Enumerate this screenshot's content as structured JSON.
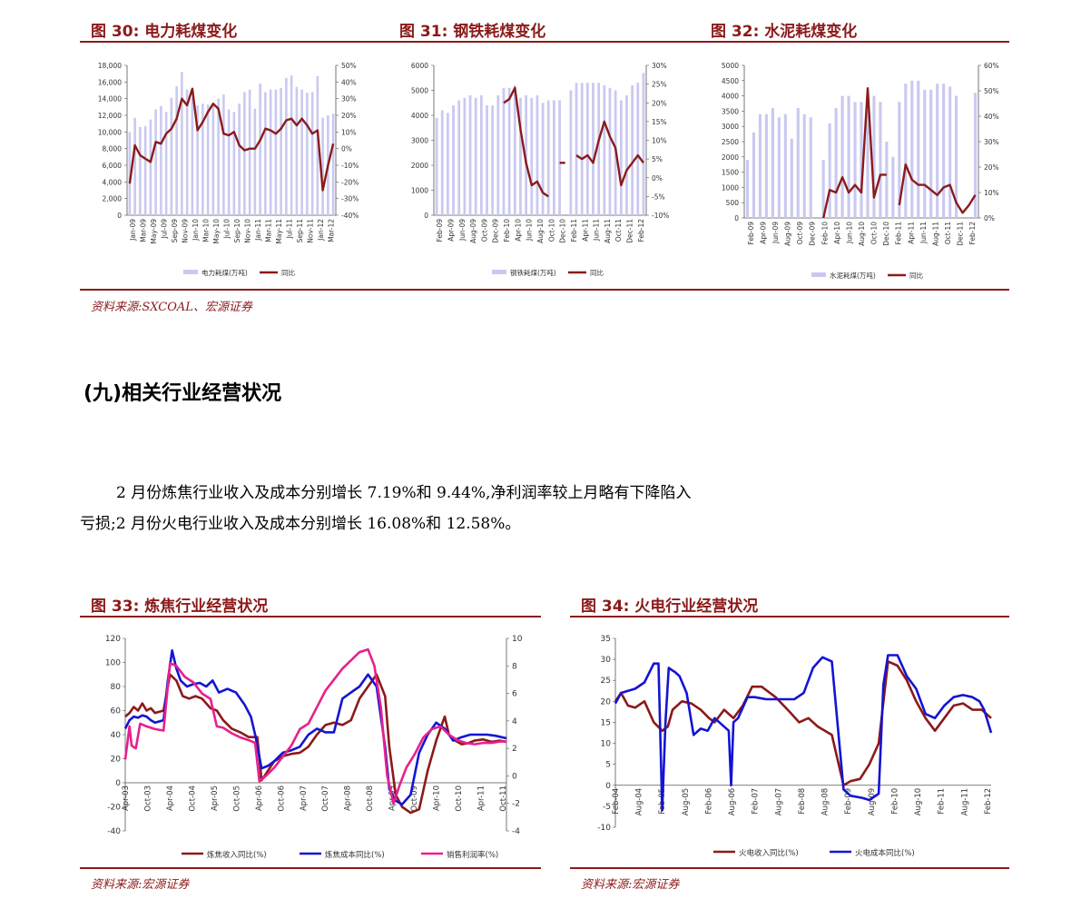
{
  "top_figures": [
    {
      "title": "图 30:  电力耗煤变化"
    },
    {
      "title": "图 31:  钢铁耗煤变化"
    },
    {
      "title": "图 32:  水泥耗煤变化"
    }
  ],
  "top_source": "资料来源:SXCOAL、宏源证券",
  "section_title": "(九)相关行业经营状况",
  "paragraph": {
    "line1": "2 月份炼焦行业收入及成本分别增长 7.19%和 9.44%,净利润率较上月略有下降陷入",
    "line2": "亏损;2 月份火电行业收入及成本分别增长 16.08%和 12.58%。"
  },
  "bottom_figures": [
    {
      "title": "图 33:  炼焦行业经营状况"
    },
    {
      "title": "图 34:  火电行业经营状况"
    }
  ],
  "bottom_sources": [
    "资料来源:宏源证券",
    "资料来源:宏源证券"
  ],
  "colors": {
    "accent": "#8b1a1a",
    "bar": "#c9c9f0",
    "line_dark": "#8b1a1a",
    "line_blue": "#1414d2",
    "line_pink": "#e8208c"
  },
  "chart_data": [
    {
      "type": "bar",
      "legend": [
        "电力耗煤(万吨)",
        "同比"
      ],
      "left_ticks": [
        "18,000",
        "16,000",
        "14,000",
        "12,000",
        "10,000",
        "8,000",
        "6,000",
        "4,000",
        "2,000",
        "0"
      ],
      "right_ticks": [
        "50%",
        "40%",
        "30%",
        "20%",
        "10%",
        "0%",
        "-10%",
        "-20%",
        "-30%",
        "-40%"
      ],
      "ylim": [
        0,
        18000
      ],
      "y2lim": [
        -40,
        50
      ],
      "x_ticks": [
        "Jan-09",
        "Mar-09",
        "May-09",
        "Jul-09",
        "Sep-09",
        "Nov-09",
        "Jan-10",
        "Mar-10",
        "May-10",
        "Jul-10",
        "Sep-10",
        "Nov-10",
        "Jan-11",
        "Mar-11",
        "May-11",
        "Jul-11",
        "Sep-11",
        "Nov-11",
        "Jan-12",
        "Mar-12"
      ],
      "bars": [
        10000,
        11700,
        10600,
        10700,
        11500,
        12700,
        13100,
        12400,
        14100,
        15500,
        17200,
        15100,
        14100,
        13200,
        13400,
        13300,
        13300,
        14000,
        14500,
        12700,
        12400,
        13400,
        14800,
        15100,
        12800,
        15800,
        14800,
        15100,
        15100,
        15300,
        16500,
        16800,
        15400,
        15100,
        14700,
        14800,
        16700,
        11700,
        12000,
        12200
      ],
      "line": [
        -21,
        2,
        -4,
        -6,
        -8,
        4,
        3,
        9,
        12,
        18,
        30,
        26,
        36,
        11,
        16,
        22,
        27,
        24,
        9,
        8,
        10,
        2,
        -1,
        0,
        0,
        5,
        12,
        11,
        9,
        12,
        17,
        18,
        14,
        18,
        14,
        9,
        11,
        -25,
        -10,
        3
      ],
      "series_names": [
        "电力耗煤(万吨)",
        "同比"
      ]
    },
    {
      "type": "bar",
      "legend": [
        "钢铁耗煤(万吨)",
        "同比"
      ],
      "left_ticks": [
        "6000",
        "5000",
        "4000",
        "3000",
        "2000",
        "1000",
        "0"
      ],
      "right_ticks": [
        "30%",
        "25%",
        "20%",
        "15%",
        "10%",
        "5%",
        "0%",
        "-5%",
        "-10%"
      ],
      "ylim": [
        0,
        6000
      ],
      "y2lim": [
        -10,
        30
      ],
      "x_ticks": [
        "Feb-09",
        "Apr-09",
        "Jun-09",
        "Aug-09",
        "Oct-09",
        "Dec-09",
        "Feb-10",
        "Apr-10",
        "Jun-10",
        "Aug-10",
        "Oct-10",
        "Dec-10",
        "Feb-11",
        "Apr-11",
        "Jun-11",
        "Aug-11",
        "Oct-11",
        "Dec-11",
        "Feb-12"
      ],
      "bars": [
        3900,
        4200,
        4100,
        4400,
        4600,
        4700,
        4800,
        4700,
        4800,
        4400,
        4400,
        4800,
        5100,
        5100,
        5200,
        4700,
        4800,
        4700,
        4800,
        4500,
        4600,
        4600,
        4600,
        null,
        5000,
        5300,
        5300,
        5300,
        5300,
        5300,
        5200,
        5100,
        5000,
        4600,
        4800,
        5200,
        5300,
        5700
      ],
      "line": [
        null,
        null,
        null,
        null,
        null,
        null,
        null,
        null,
        null,
        null,
        null,
        null,
        20,
        21,
        24,
        13,
        4,
        -2,
        -1,
        -4,
        -5,
        null,
        4,
        4,
        null,
        6,
        5,
        6,
        4,
        10,
        15,
        11,
        8,
        -2,
        2,
        4,
        6,
        4
      ],
      "series_names": [
        "钢铁耗煤(万吨)",
        "同比"
      ]
    },
    {
      "type": "bar",
      "legend": [
        "水泥耗煤(万吨)",
        "同比"
      ],
      "left_ticks": [
        "5000",
        "4500",
        "4000",
        "3500",
        "3000",
        "2500",
        "2000",
        "1500",
        "1000",
        "500",
        "0"
      ],
      "right_ticks": [
        "60%",
        "50%",
        "40%",
        "30%",
        "20%",
        "10%",
        "0%"
      ],
      "ylim": [
        0,
        5000
      ],
      "y2lim": [
        0,
        60
      ],
      "x_ticks": [
        "Feb-09",
        "Apr-09",
        "Jun-09",
        "Aug-09",
        "Oct-09",
        "Dec-09",
        "Feb-10",
        "Apr-10",
        "Jun-10",
        "Aug-10",
        "Oct-10",
        "Dec-10",
        "Feb-11",
        "Apr-11",
        "Jun-11",
        "Aug-11",
        "Oct-11",
        "Dec-11",
        "Feb-12"
      ],
      "bars": [
        1900,
        2800,
        3400,
        3400,
        3600,
        3300,
        3400,
        2600,
        3600,
        3400,
        3300,
        null,
        1900,
        3100,
        3600,
        4000,
        4000,
        3800,
        3800,
        3800,
        4000,
        3800,
        2500,
        2000,
        3800,
        4400,
        4500,
        4500,
        4200,
        4200,
        4400,
        4400,
        4300,
        4000,
        null,
        null,
        4100
      ],
      "line": [
        null,
        null,
        null,
        null,
        null,
        null,
        null,
        null,
        null,
        null,
        null,
        null,
        0,
        11,
        10,
        16,
        10,
        13,
        10,
        51,
        8,
        17,
        17,
        null,
        5,
        21,
        15,
        13,
        13,
        11,
        9,
        12,
        13,
        6,
        2,
        5,
        9
      ],
      "series_names": [
        "水泥耗煤(万吨)",
        "同比"
      ]
    },
    {
      "type": "line",
      "legend": [
        "炼焦收入同比(%)",
        "炼焦成本同比(%)",
        "销售利润率(%)"
      ],
      "left_ticks": [
        "120",
        "100",
        "80",
        "60",
        "40",
        "20",
        "0",
        "-20",
        "-40"
      ],
      "right_ticks": [
        "10",
        "8",
        "6",
        "4",
        "2",
        "0",
        "-2",
        "-4"
      ],
      "ylim": [
        -40,
        120
      ],
      "y2lim": [
        -4,
        10
      ],
      "x_ticks": [
        "Apr-03",
        "Oct-03",
        "Apr-04",
        "Oct-04",
        "Apr-05",
        "Oct-05",
        "Apr-06",
        "Oct-06",
        "Apr-07",
        "Oct-07",
        "Apr-08",
        "Oct-08",
        "Apr-09",
        "Oct-09",
        "Apr-10",
        "Oct-10",
        "Apr-11",
        "Oct-11"
      ],
      "x_range": [
        2003.0,
        2011.95
      ],
      "series": [
        {
          "name": "炼焦收入同比(%)",
          "axis": "left",
          "color": "#8b1a1a",
          "x": [
            2003.0,
            2003.1,
            2003.2,
            2003.3,
            2003.4,
            2003.5,
            2003.6,
            2003.7,
            2003.9,
            2004.05,
            2004.2,
            2004.35,
            2004.5,
            2004.65,
            2004.8,
            2005.0,
            2005.15,
            2005.3,
            2005.5,
            2005.7,
            2005.9,
            2006.1,
            2006.2,
            2006.35,
            2006.5,
            2006.7,
            2006.9,
            2007.1,
            2007.3,
            2007.5,
            2007.7,
            2007.9,
            2008.1,
            2008.3,
            2008.5,
            2008.7,
            2008.9,
            2009.1,
            2009.2,
            2009.35,
            2009.5,
            2009.7,
            2009.9,
            2010.1,
            2010.3,
            2010.5,
            2010.6,
            2010.75,
            2010.9,
            2011.05,
            2011.2,
            2011.4,
            2011.6,
            2011.8,
            2011.95
          ],
          "y": [
            55,
            58,
            63,
            60,
            66,
            60,
            62,
            58,
            60,
            90,
            85,
            72,
            70,
            72,
            70,
            62,
            60,
            52,
            45,
            42,
            38,
            38,
            2,
            10,
            18,
            22,
            24,
            25,
            30,
            40,
            48,
            50,
            48,
            52,
            70,
            80,
            90,
            72,
            30,
            -10,
            -20,
            -25,
            -22,
            10,
            35,
            55,
            40,
            35,
            32,
            33,
            35,
            36,
            34,
            35,
            34
          ]
        },
        {
          "name": "炼焦成本同比(%)",
          "axis": "left",
          "color": "#1414d2",
          "x": [
            2003.0,
            2003.1,
            2003.2,
            2003.3,
            2003.4,
            2003.5,
            2003.6,
            2003.7,
            2003.9,
            2004.0,
            2004.1,
            2004.2,
            2004.3,
            2004.45,
            2004.6,
            2004.75,
            2004.9,
            2005.05,
            2005.2,
            2005.4,
            2005.6,
            2005.8,
            2005.95,
            2006.05,
            2006.2,
            2006.35,
            2006.5,
            2006.7,
            2006.9,
            2007.1,
            2007.3,
            2007.5,
            2007.7,
            2007.9,
            2008.1,
            2008.3,
            2008.5,
            2008.7,
            2008.9,
            2009.1,
            2009.2,
            2009.35,
            2009.5,
            2009.7,
            2009.9,
            2010.1,
            2010.3,
            2010.5,
            2010.7,
            2010.9,
            2011.1,
            2011.3,
            2011.5,
            2011.7,
            2011.95
          ],
          "y": [
            45,
            52,
            55,
            54,
            56,
            55,
            52,
            50,
            52,
            85,
            110,
            95,
            85,
            80,
            82,
            83,
            80,
            85,
            75,
            78,
            75,
            65,
            55,
            40,
            12,
            14,
            18,
            25,
            27,
            30,
            40,
            45,
            42,
            42,
            70,
            75,
            80,
            90,
            80,
            30,
            -5,
            -15,
            -18,
            -10,
            25,
            40,
            50,
            45,
            35,
            38,
            40,
            40,
            40,
            39,
            37
          ]
        },
        {
          "name": "销售利润率(%)",
          "axis": "right",
          "color": "#e8208c",
          "x": [
            2003.0,
            2003.1,
            2003.15,
            2003.25,
            2003.35,
            2003.5,
            2003.7,
            2003.9,
            2004.05,
            2004.2,
            2004.4,
            2004.6,
            2004.8,
            2005.0,
            2005.15,
            2005.3,
            2005.5,
            2005.7,
            2005.9,
            2006.05,
            2006.15,
            2006.3,
            2006.5,
            2006.7,
            2006.9,
            2007.1,
            2007.3,
            2007.5,
            2007.7,
            2007.9,
            2008.1,
            2008.3,
            2008.5,
            2008.7,
            2008.85,
            2009.0,
            2009.15,
            2009.3,
            2009.45,
            2009.6,
            2009.8,
            2010.0,
            2010.2,
            2010.4,
            2010.6,
            2010.8,
            2011.0,
            2011.2,
            2011.4,
            2011.6,
            2011.8,
            2011.95
          ],
          "y": [
            1.2,
            3.6,
            2.2,
            2.0,
            3.8,
            3.6,
            3.4,
            3.3,
            8.2,
            8.0,
            7.2,
            6.8,
            6.0,
            5.6,
            3.6,
            3.5,
            3.1,
            2.8,
            2.6,
            2.4,
            -0.4,
            0.0,
            0.6,
            1.4,
            2.2,
            3.4,
            3.8,
            5.0,
            6.2,
            7.0,
            7.8,
            8.4,
            9.0,
            9.2,
            8.0,
            5.0,
            0.0,
            -2.0,
            -0.6,
            0.6,
            1.6,
            2.8,
            3.4,
            3.6,
            3.0,
            2.6,
            2.4,
            2.3,
            2.4,
            2.4,
            2.5,
            2.5
          ]
        }
      ]
    },
    {
      "type": "line",
      "legend": [
        "火电收入同比(%)",
        "火电成本同比(%)"
      ],
      "left_ticks": [
        "35",
        "30",
        "25",
        "20",
        "15",
        "10",
        "5",
        "0",
        "-5",
        "-10"
      ],
      "ylim": [
        -10,
        35
      ],
      "x_ticks": [
        "Feb-04",
        "Aug-04",
        "Feb-05",
        "Aug-05",
        "Feb-06",
        "Aug-06",
        "Feb-07",
        "Aug-07",
        "Feb-08",
        "Aug-08",
        "Feb-09",
        "Aug-09",
        "Feb-10",
        "Aug-10",
        "Feb-11",
        "Aug-11",
        "Feb-12"
      ],
      "x_range": [
        2004.08,
        2012.1
      ],
      "series": [
        {
          "name": "火电收入同比(%)",
          "axis": "left",
          "color": "#8b1a1a",
          "x": [
            2004.08,
            2004.2,
            2004.35,
            2004.5,
            2004.7,
            2004.9,
            2005.08,
            2005.2,
            2005.3,
            2005.5,
            2005.7,
            2005.9,
            2006.08,
            2006.2,
            2006.4,
            2006.6,
            2006.8,
            2007.0,
            2007.2,
            2007.5,
            2007.8,
            2008.0,
            2008.2,
            2008.4,
            2008.7,
            2008.95,
            2009.1,
            2009.3,
            2009.5,
            2009.7,
            2009.9,
            2010.1,
            2010.3,
            2010.5,
            2010.7,
            2010.9,
            2011.1,
            2011.3,
            2011.5,
            2011.7,
            2011.9,
            2012.1
          ],
          "y": [
            20,
            22,
            19,
            18.5,
            20,
            15,
            13,
            14,
            18,
            20,
            19.5,
            18,
            16,
            15,
            18,
            16,
            19,
            23.5,
            23.5,
            21,
            17.5,
            15,
            16,
            14,
            12,
            0,
            1,
            1.5,
            5,
            10,
            29.5,
            28.5,
            25,
            20,
            16,
            13,
            16,
            19,
            19.5,
            18,
            18,
            16
          ]
        },
        {
          "name": "火电成本同比(%)",
          "axis": "left",
          "color": "#1414d2",
          "x": [
            2004.08,
            2004.2,
            2004.35,
            2004.5,
            2004.7,
            2004.9,
            2005.0,
            2005.08,
            2005.15,
            2005.22,
            2005.28,
            2005.35,
            2005.45,
            2005.6,
            2005.75,
            2005.9,
            2006.05,
            2006.2,
            2006.35,
            2006.5,
            2006.55,
            2006.6,
            2006.7,
            2006.9,
            2007.05,
            2007.3,
            2007.6,
            2007.9,
            2008.1,
            2008.3,
            2008.5,
            2008.7,
            2008.95,
            2009.1,
            2009.35,
            2009.5,
            2009.7,
            2009.8,
            2009.9,
            2010.1,
            2010.3,
            2010.5,
            2010.7,
            2010.9,
            2011.1,
            2011.3,
            2011.5,
            2011.7,
            2011.85,
            2011.95,
            2012.1
          ],
          "y": [
            19.5,
            22,
            22.5,
            23,
            24.5,
            29,
            29,
            -6,
            15,
            28,
            27.5,
            27,
            26,
            22,
            12,
            13.5,
            13,
            16,
            14.5,
            13,
            0,
            15,
            16,
            21,
            21,
            20.5,
            20.5,
            20.5,
            22,
            28,
            30.5,
            29.5,
            -1,
            -2.5,
            -3,
            -3.5,
            -2,
            24,
            31,
            31,
            26,
            23,
            17,
            16,
            19,
            21,
            21.5,
            21,
            20,
            18,
            12.5
          ]
        }
      ]
    }
  ]
}
